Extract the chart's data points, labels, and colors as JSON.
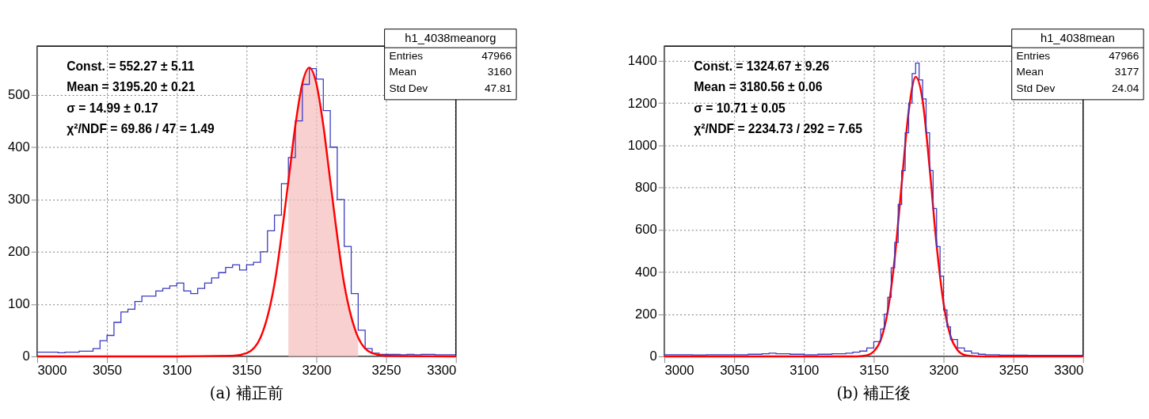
{
  "chart_data": [
    {
      "type": "step",
      "title": "(a) 補正前",
      "xlim": [
        3000,
        3300
      ],
      "ylim": [
        0,
        593
      ],
      "xticks": [
        3000,
        3050,
        3100,
        3150,
        3200,
        3250,
        3300
      ],
      "yticks": [
        0,
        100,
        200,
        300,
        400,
        500
      ],
      "grid": true,
      "annotations": [
        "Const. = 552.27 ± 5.11",
        "Mean = 3195.20 ± 0.21",
        "σ = 14.99 ± 0.17",
        "χ²/NDF = 69.86 / 47 = 1.49",
        "h1_4038meanorg",
        "Entries",
        "47966",
        "Mean",
        "3160",
        "Std Dev",
        "47.81"
      ],
      "series": [
        {
          "type": "area",
          "color": "#f6bcbc",
          "x": [
            3180,
            3185,
            3190,
            3195,
            3200,
            3205,
            3210,
            3220,
            3230
          ],
          "values": [
            335,
            442,
            522,
            552,
            522,
            442,
            335,
            138,
            36
          ]
        },
        {
          "color": "#3a3ac0",
          "x": [
            3000,
            3005,
            3010,
            3015,
            3020,
            3025,
            3030,
            3035,
            3040,
            3045,
            3050,
            3055,
            3060,
            3065,
            3070,
            3075,
            3080,
            3085,
            3090,
            3095,
            3100,
            3105,
            3110,
            3115,
            3120,
            3125,
            3130,
            3135,
            3140,
            3145,
            3150,
            3155,
            3160,
            3165,
            3170,
            3175,
            3180,
            3185,
            3190,
            3195,
            3200,
            3205,
            3210,
            3215,
            3220,
            3225,
            3230,
            3235,
            3240,
            3245,
            3250,
            3255,
            3260,
            3265,
            3270,
            3275,
            3280,
            3285,
            3290,
            3295,
            3300
          ],
          "values": [
            8,
            8,
            8,
            7,
            8,
            8,
            10,
            10,
            15,
            30,
            40,
            65,
            85,
            90,
            105,
            115,
            115,
            125,
            130,
            135,
            140,
            125,
            120,
            130,
            140,
            150,
            160,
            170,
            175,
            165,
            175,
            180,
            200,
            240,
            270,
            330,
            380,
            450,
            520,
            550,
            530,
            470,
            400,
            300,
            210,
            120,
            50,
            15,
            6,
            4,
            4,
            4,
            3,
            4,
            3,
            4,
            4,
            3,
            3,
            3,
            3
          ]
        },
        {
          "type": "line",
          "color": "#ff0000",
          "x": [
            3000,
            3100,
            3140,
            3150,
            3160,
            3170,
            3180,
            3185,
            3190,
            3195,
            3200,
            3205,
            3210,
            3220,
            3230,
            3240,
            3250,
            3300
          ],
          "values": [
            0,
            0,
            1,
            6,
            36,
            138,
            335,
            442,
            522,
            552,
            522,
            442,
            335,
            138,
            36,
            6,
            1,
            0
          ]
        }
      ]
    },
    {
      "type": "step",
      "title": "(b) 補正後",
      "xlim": [
        3000,
        3300
      ],
      "ylim": [
        0,
        1470
      ],
      "xticks": [
        3000,
        3050,
        3100,
        3150,
        3200,
        3250,
        3300
      ],
      "yticks": [
        0,
        200,
        400,
        600,
        800,
        1000,
        1200,
        1400
      ],
      "grid": true,
      "annotations": [
        "Const. = 1324.67 ± 9.26",
        "Mean = 3180.56 ± 0.06",
        "σ = 10.71 ± 0.05",
        "χ²/NDF = 2234.73 / 292 = 7.65",
        "h1_4038mean",
        "Entries",
        "47966",
        "Mean",
        "3177",
        "Std Dev",
        "24.04"
      ],
      "series": [
        {
          "type": "line",
          "color": "#ff0000",
          "x": [
            3000,
            3135,
            3140,
            3145,
            3150,
            3155,
            3160,
            3165,
            3170,
            3175,
            3180,
            3185,
            3190,
            3195,
            3200,
            3205,
            3210,
            3215,
            3220,
            3230,
            3300
          ],
          "values": [
            0,
            0,
            1,
            5,
            23,
            78,
            213,
            464,
            818,
            1160,
            1325,
            1213,
            895,
            529,
            252,
            96,
            30,
            7,
            2,
            0,
            0
          ]
        },
        {
          "color": "#3a3ac0",
          "x": [
            3000,
            3010,
            3020,
            3030,
            3040,
            3050,
            3060,
            3070,
            3075,
            3080,
            3090,
            3100,
            3110,
            3120,
            3130,
            3135,
            3140,
            3145,
            3150,
            3155,
            3157.5,
            3160,
            3162.5,
            3165,
            3167.5,
            3170,
            3172.5,
            3175,
            3177.5,
            3180,
            3182.5,
            3185,
            3187.5,
            3190,
            3192.5,
            3195,
            3197.5,
            3200,
            3202.5,
            3205,
            3210,
            3215,
            3220,
            3225,
            3230,
            3240,
            3250,
            3260,
            3270,
            3280,
            3290,
            3300
          ],
          "values": [
            8,
            8,
            7,
            8,
            8,
            8,
            10,
            12,
            15,
            12,
            10,
            8,
            10,
            12,
            15,
            20,
            25,
            40,
            70,
            130,
            200,
            280,
            420,
            540,
            720,
            880,
            1060,
            1200,
            1340,
            1390,
            1310,
            1220,
            1060,
            880,
            700,
            520,
            380,
            220,
            140,
            80,
            40,
            25,
            15,
            10,
            8,
            6,
            6,
            5,
            5,
            5,
            5,
            5
          ]
        }
      ]
    }
  ]
}
